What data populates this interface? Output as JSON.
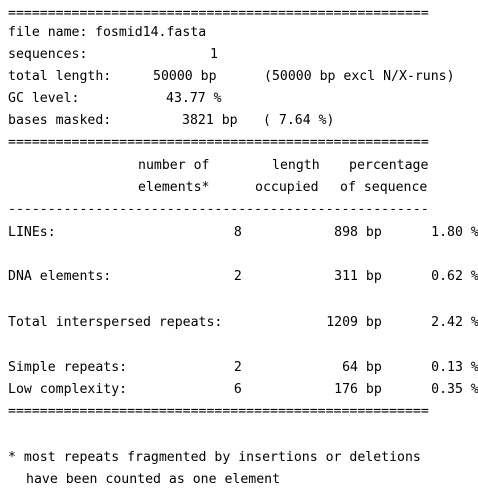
{
  "report": {
    "rule_eq": "=====================================================",
    "rule_dash": "-----------------------------------------------------",
    "file_name": {
      "label": "file name:",
      "value": "fosmid14.fasta"
    },
    "sequences": {
      "label": "sequences:",
      "value": "1"
    },
    "total_length": {
      "label": "total length:",
      "value": "50000 bp",
      "extra": "(50000 bp excl N/X-runs)"
    },
    "gc_level": {
      "label": "GC level:",
      "value": "43.77 %"
    },
    "bases_masked": {
      "label": "bases masked:",
      "value": "3821 bp",
      "paren": "( 7.64 %)"
    },
    "columns": {
      "number_of": "number of",
      "elements": "elements*",
      "length": "length",
      "occupied": "occupied",
      "percentage": "percentage",
      "of_sequence": "of sequence"
    },
    "rows": [
      {
        "label": "LINEs:",
        "count": "8",
        "length": "898 bp",
        "percent": "1.80 %"
      },
      {
        "label": "DNA elements:",
        "count": "2",
        "length": "311 bp",
        "percent": "0.62 %"
      },
      {
        "label": "Total interspersed repeats:",
        "count": "",
        "length": "1209 bp",
        "percent": "2.42 %"
      },
      {
        "label": "Simple repeats:",
        "count": "2",
        "length": "64 bp",
        "percent": "0.13 %"
      },
      {
        "label": "Low complexity:",
        "count": "6",
        "length": "176 bp",
        "percent": "0.35 %"
      }
    ],
    "footnote": {
      "line1": "* most repeats fragmented by insertions or deletions",
      "line2": "have been counted as one element"
    }
  }
}
